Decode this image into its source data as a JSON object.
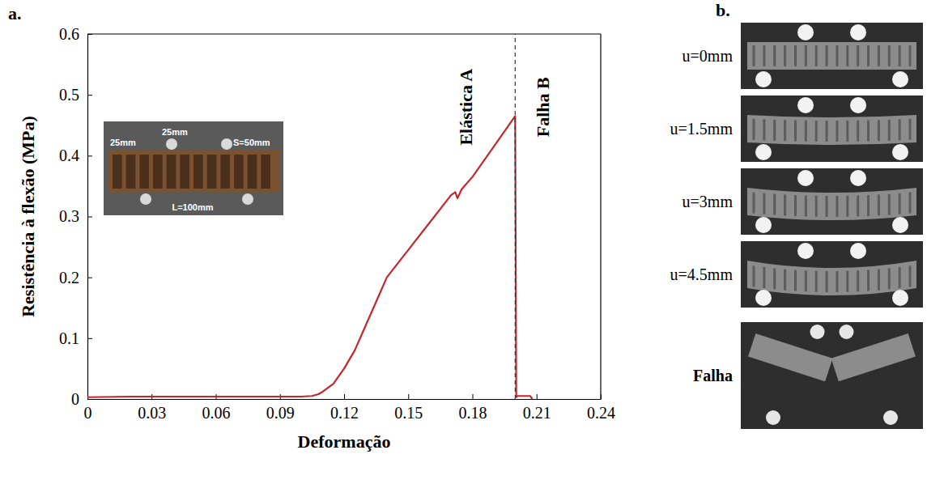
{
  "panel_labels": [
    "a.",
    "b."
  ],
  "chart_data": {
    "type": "line",
    "x_label": "Deformação",
    "y_label": "Resistência à flexão (MPa)",
    "x": [
      0,
      0.02,
      0.04,
      0.06,
      0.08,
      0.1,
      0.105,
      0.108,
      0.11,
      0.115,
      0.12,
      0.125,
      0.13,
      0.135,
      0.14,
      0.15,
      0.16,
      0.17,
      0.172,
      0.173,
      0.175,
      0.18,
      0.19,
      0.2,
      0.2005,
      0.201,
      0.207,
      0.208
    ],
    "values": [
      0.003,
      0.004,
      0.004,
      0.004,
      0.004,
      0.004,
      0.005,
      0.008,
      0.012,
      0.025,
      0.05,
      0.08,
      0.12,
      0.16,
      0.2,
      0.245,
      0.29,
      0.335,
      0.34,
      0.33,
      0.345,
      0.365,
      0.415,
      0.465,
      0.003,
      0.005,
      0.005,
      0.0
    ],
    "color": "#c4262e",
    "xlim": [
      0,
      0.24
    ],
    "xticks": [
      0,
      0.03,
      0.06,
      0.09,
      0.12,
      0.15,
      0.18,
      0.21,
      0.24
    ],
    "ylim": [
      0,
      0.6
    ],
    "yticks": [
      0,
      0.1,
      0.2,
      0.3,
      0.4,
      0.5,
      0.6
    ],
    "grid": false,
    "reference_lines": [
      {
        "x": 0.2,
        "line_style": "dashed"
      }
    ],
    "annotations": [
      {
        "text": "Elástica A",
        "x": 0.177,
        "y": 0.48
      },
      {
        "text": "Falha B",
        "x": 0.213,
        "y": 0.48
      }
    ],
    "inset": {
      "labels": [
        "25mm",
        "25mm",
        "S=50mm",
        "L=100mm"
      ]
    }
  },
  "photo_strip": {
    "frames": [
      "u=0mm",
      "u=1.5mm",
      "u=3mm",
      "u=4.5mm",
      "Falha"
    ]
  }
}
